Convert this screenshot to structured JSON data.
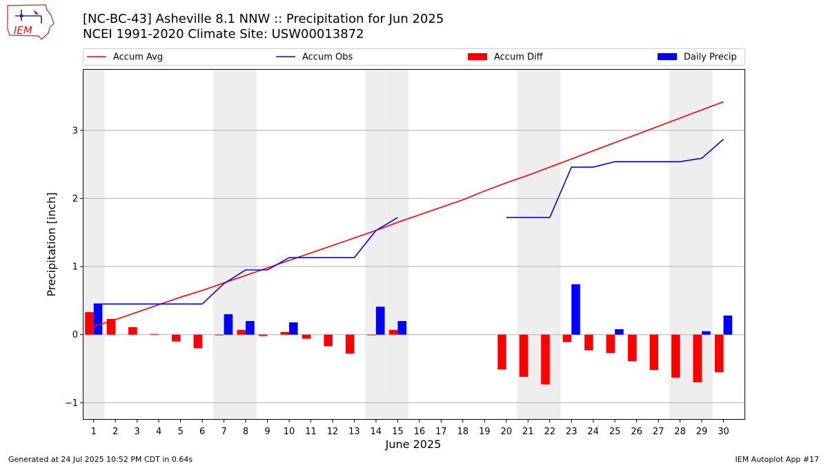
{
  "logo_text": "IEM",
  "title_line1": "[NC-BC-43] Asheville 8.1 NNW :: Precipitation for Jun 2025",
  "title_line2": "NCEI 1991-2020 Climate Site: USW00013872",
  "footer_left": "Generated at 24 Jul 2025 10:52 PM CDT in 0.64s",
  "footer_right": "IEM Autoplot App #17",
  "chart_data": {
    "type": "bar",
    "xlabel": "June 2025",
    "ylabel": "Precipitation [inch]",
    "xlim": [
      0.5,
      31
    ],
    "ylim": [
      -1.25,
      3.9
    ],
    "grid": true,
    "legend_position": "top",
    "days": [
      1,
      2,
      3,
      4,
      5,
      6,
      7,
      8,
      9,
      10,
      11,
      12,
      13,
      14,
      15,
      16,
      17,
      18,
      19,
      20,
      21,
      22,
      23,
      24,
      25,
      26,
      27,
      28,
      29,
      30
    ],
    "shaded_days": [
      1,
      7,
      8,
      14,
      15,
      21,
      22,
      28,
      29
    ],
    "yticks": [
      {
        "value": -1,
        "label": "−1"
      },
      {
        "value": 0,
        "label": "0"
      },
      {
        "value": 1,
        "label": "1"
      },
      {
        "value": 2,
        "label": "2"
      },
      {
        "value": 3,
        "label": "3"
      }
    ],
    "series": [
      {
        "name": "Accum Avg",
        "kind": "line",
        "color": "#ff0000",
        "values": [
          0.12,
          0.22,
          0.33,
          0.44,
          0.55,
          0.65,
          0.76,
          0.87,
          0.98,
          1.09,
          1.2,
          1.31,
          1.42,
          1.53,
          1.65,
          1.76,
          1.87,
          1.98,
          2.11,
          2.23,
          2.34,
          2.46,
          2.58,
          2.7,
          2.82,
          2.94,
          3.06,
          3.18,
          3.3,
          3.42
        ]
      },
      {
        "name": "Accum Obs",
        "kind": "line",
        "color": "#0000ff",
        "values": [
          0.45,
          0.45,
          0.45,
          0.45,
          0.45,
          0.45,
          0.75,
          0.95,
          0.95,
          1.13,
          1.13,
          1.13,
          1.13,
          1.53,
          1.72,
          null,
          null,
          null,
          null,
          1.72,
          1.72,
          1.72,
          2.46,
          2.46,
          2.54,
          2.54,
          2.54,
          2.54,
          2.59,
          2.87
        ]
      },
      {
        "name": "Accum Diff",
        "kind": "bar",
        "color": "#ff0000",
        "values": [
          0.33,
          0.23,
          0.11,
          0.01,
          -0.1,
          -0.2,
          -0.01,
          0.07,
          -0.02,
          0.04,
          -0.06,
          -0.17,
          -0.28,
          -0.01,
          0.07,
          null,
          null,
          null,
          null,
          -0.51,
          -0.62,
          -0.73,
          -0.11,
          -0.23,
          -0.27,
          -0.39,
          -0.52,
          -0.63,
          -0.7,
          -0.55
        ]
      },
      {
        "name": "Daily Precip",
        "kind": "bar",
        "color": "#0000ff",
        "values": [
          0.45,
          0,
          0,
          0,
          0,
          0,
          0.3,
          0.2,
          0,
          0.18,
          0,
          0,
          0,
          0.41,
          0.2,
          null,
          null,
          null,
          null,
          0,
          0,
          0,
          0.74,
          0,
          0.08,
          0,
          0,
          0,
          0.05,
          0.28
        ]
      }
    ]
  }
}
